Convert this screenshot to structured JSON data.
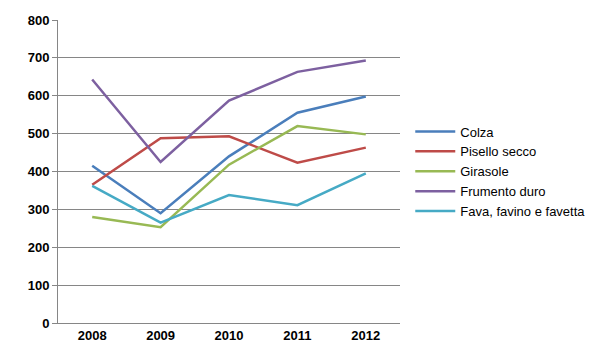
{
  "chart_data": {
    "type": "line",
    "categories": [
      "2008",
      "2009",
      "2010",
      "2011",
      "2012"
    ],
    "series": [
      {
        "name": "Colza",
        "color": "#4a7ebb",
        "values": [
          415,
          290,
          440,
          555,
          598
        ]
      },
      {
        "name": "Pisello secco",
        "color": "#be4b48",
        "values": [
          365,
          488,
          493,
          423,
          463
        ]
      },
      {
        "name": "Girasole",
        "color": "#98b954",
        "values": [
          280,
          253,
          418,
          520,
          498
        ]
      },
      {
        "name": "Frumento duro",
        "color": "#7d60a0",
        "values": [
          643,
          425,
          587,
          663,
          693
        ]
      },
      {
        "name": "Fava, favino e favetta",
        "color": "#46aac5",
        "values": [
          362,
          265,
          338,
          311,
          395
        ]
      }
    ],
    "ylim": [
      0,
      800
    ],
    "yticks": [
      0,
      100,
      200,
      300,
      400,
      500,
      600,
      700,
      800
    ],
    "grid": true,
    "legend": "right"
  }
}
